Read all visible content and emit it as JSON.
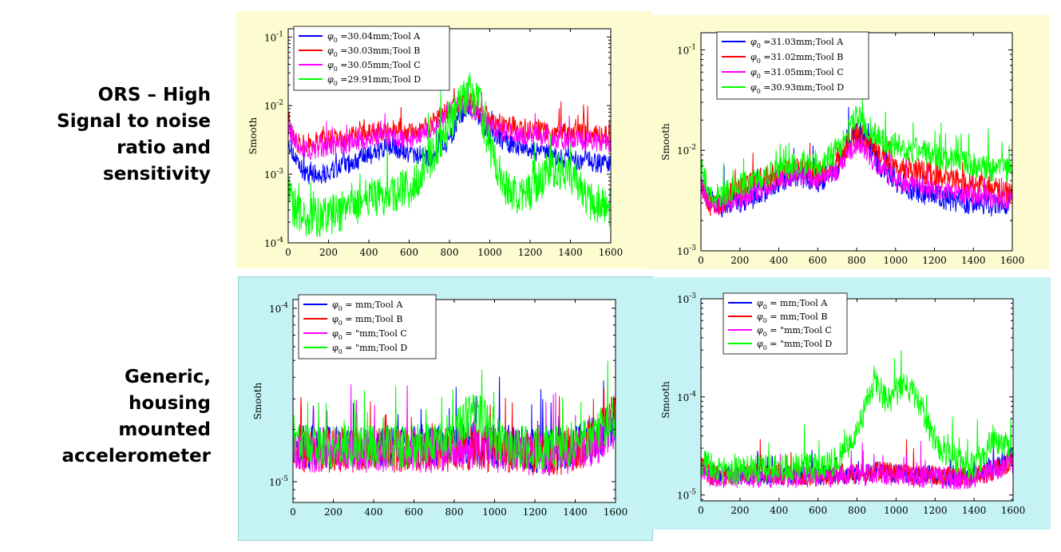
{
  "row_labels": [
    {
      "lines": [
        "ORS – High",
        "Signal to noise",
        "ratio and",
        "sensitivity"
      ]
    },
    {
      "lines": [
        "Generic,",
        "housing",
        "mounted",
        "accelerometer"
      ]
    }
  ],
  "colors": {
    "tool_a": "#0000ff",
    "tool_b": "#ff0000",
    "tool_c": "#ff00ff",
    "tool_d": "#00ff00",
    "ors_bg": "#fdfbd0",
    "accel_bg": "#c5f3f5"
  },
  "chart_data": [
    {
      "type": "line",
      "ylabel": "Smooth",
      "yscale": "log",
      "xlim": [
        0,
        1600
      ],
      "ylim_exp": [
        -4,
        -0.88
      ],
      "x_ticks": [
        "0",
        "200",
        "400",
        "600",
        "800",
        "1000",
        "1200",
        "1400",
        "1600"
      ],
      "y_ticks": [
        {
          "exp": -4,
          "label": "10",
          "sup": "-4"
        },
        {
          "exp": -3,
          "label": "10",
          "sup": "-3"
        },
        {
          "exp": -2,
          "label": "10",
          "sup": "-2"
        },
        {
          "exp": -1,
          "label": "10",
          "sup": "-1"
        }
      ],
      "legend_position": "top-left",
      "series": [
        {
          "name": "φ0 =30.04mm;Tool A",
          "sub_pre": "=30.04mm;Tool A",
          "x": [
            0,
            50,
            100,
            200,
            300,
            400,
            500,
            600,
            700,
            800,
            850,
            900,
            950,
            1000,
            1100,
            1200,
            1300,
            1400,
            1500,
            1600
          ],
          "log_values": [
            -2.5,
            -2.9,
            -3.0,
            -2.98,
            -2.85,
            -2.72,
            -2.6,
            -2.7,
            -2.75,
            -2.5,
            -2.2,
            -2.0,
            -2.2,
            -2.4,
            -2.55,
            -2.65,
            -2.72,
            -2.78,
            -2.82,
            -2.85
          ],
          "noise": 0.15
        },
        {
          "name": "φ0 =30.03mm;Tool B",
          "sub_pre": "=30.03mm;Tool B",
          "x": [
            0,
            50,
            100,
            200,
            300,
            400,
            500,
            600,
            700,
            800,
            850,
            900,
            950,
            1000,
            1100,
            1200,
            1300,
            1400,
            1500,
            1600
          ],
          "log_values": [
            -2.2,
            -2.55,
            -2.55,
            -2.5,
            -2.45,
            -2.4,
            -2.35,
            -2.4,
            -2.3,
            -2.05,
            -1.95,
            -1.95,
            -2.05,
            -2.2,
            -2.3,
            -2.35,
            -2.38,
            -2.4,
            -2.42,
            -2.45
          ],
          "noise": 0.15
        },
        {
          "name": "φ0 =30.05mm;Tool C",
          "sub_pre": "=30.05mm;Tool C",
          "x": [
            0,
            50,
            100,
            200,
            300,
            400,
            500,
            600,
            700,
            800,
            850,
            900,
            950,
            1000,
            1100,
            1200,
            1300,
            1400,
            1500,
            1600
          ],
          "log_values": [
            -2.3,
            -2.6,
            -2.65,
            -2.6,
            -2.55,
            -2.5,
            -2.45,
            -2.5,
            -2.35,
            -2.1,
            -2.0,
            -2.05,
            -2.15,
            -2.3,
            -2.4,
            -2.45,
            -2.5,
            -2.5,
            -2.52,
            -2.55
          ],
          "noise": 0.15
        },
        {
          "name": "φ0 =29.91mm;Tool D",
          "sub_pre": "=29.91mm;Tool D",
          "x": [
            0,
            50,
            100,
            200,
            300,
            400,
            500,
            600,
            700,
            800,
            850,
            900,
            950,
            1000,
            1100,
            1200,
            1300,
            1400,
            1500,
            1600
          ],
          "log_values": [
            -3.3,
            -3.6,
            -3.65,
            -3.6,
            -3.5,
            -3.35,
            -3.3,
            -3.2,
            -2.8,
            -2.3,
            -2.0,
            -1.8,
            -2.0,
            -2.6,
            -3.3,
            -3.3,
            -2.9,
            -3.0,
            -3.4,
            -3.5
          ],
          "noise": 0.3
        }
      ]
    },
    {
      "type": "line",
      "ylabel": "Smooth",
      "yscale": "log",
      "xlim": [
        0,
        1600
      ],
      "ylim_exp": [
        -3,
        -0.83
      ],
      "x_ticks": [
        "0",
        "200",
        "400",
        "600",
        "800",
        "1000",
        "1200",
        "1400",
        "1600"
      ],
      "y_ticks": [
        {
          "exp": -3,
          "label": "10",
          "sup": "-3"
        },
        {
          "exp": -2,
          "label": "10",
          "sup": "-2"
        },
        {
          "exp": -1,
          "label": "10",
          "sup": "-1"
        }
      ],
      "legend_position": "top-left",
      "series": [
        {
          "name": "φ0 =31.03mm;Tool A",
          "sub_pre": "=31.03mm;Tool A",
          "x": [
            0,
            50,
            100,
            200,
            300,
            400,
            500,
            600,
            700,
            750,
            800,
            850,
            900,
            1000,
            1100,
            1200,
            1300,
            1400,
            1500,
            1600
          ],
          "log_values": [
            -2.3,
            -2.5,
            -2.55,
            -2.5,
            -2.45,
            -2.3,
            -2.25,
            -2.3,
            -2.2,
            -1.95,
            -1.8,
            -1.9,
            -2.1,
            -2.3,
            -2.4,
            -2.45,
            -2.5,
            -2.52,
            -2.55,
            -2.5
          ],
          "noise": 0.12
        },
        {
          "name": "φ0 =31.02mm;Tool B",
          "sub_pre": "=31.02mm;Tool B",
          "x": [
            0,
            50,
            100,
            200,
            300,
            400,
            500,
            600,
            700,
            750,
            800,
            850,
            900,
            1000,
            1100,
            1200,
            1300,
            1400,
            1500,
            1600
          ],
          "log_values": [
            -2.3,
            -2.55,
            -2.5,
            -2.4,
            -2.3,
            -2.25,
            -2.2,
            -2.25,
            -2.1,
            -1.95,
            -1.85,
            -1.9,
            -2.0,
            -2.15,
            -2.2,
            -2.25,
            -2.3,
            -2.35,
            -2.4,
            -2.4
          ],
          "noise": 0.13
        },
        {
          "name": "φ0 =31.05mm;Tool C",
          "sub_pre": "=31.05mm;Tool C",
          "x": [
            0,
            50,
            100,
            200,
            300,
            400,
            500,
            600,
            700,
            750,
            800,
            850,
            900,
            1000,
            1100,
            1200,
            1300,
            1400,
            1500,
            1600
          ],
          "log_values": [
            -2.35,
            -2.55,
            -2.55,
            -2.5,
            -2.4,
            -2.3,
            -2.25,
            -2.3,
            -2.2,
            -2.05,
            -1.95,
            -2.0,
            -2.15,
            -2.3,
            -2.35,
            -2.4,
            -2.42,
            -2.45,
            -2.48,
            -2.5
          ],
          "noise": 0.1
        },
        {
          "name": "φ0 =30.93mm;Tool D",
          "sub_pre": "=30.93mm;Tool D",
          "x": [
            0,
            50,
            100,
            200,
            300,
            400,
            500,
            600,
            700,
            750,
            800,
            850,
            900,
            1000,
            1100,
            1200,
            1300,
            1400,
            1500,
            1600
          ],
          "log_values": [
            -2.2,
            -2.45,
            -2.45,
            -2.35,
            -2.3,
            -2.2,
            -2.15,
            -2.15,
            -2.0,
            -1.85,
            -1.65,
            -1.75,
            -1.85,
            -1.95,
            -2.0,
            -2.05,
            -2.1,
            -2.15,
            -2.2,
            -2.2
          ],
          "noise": 0.13
        }
      ]
    },
    {
      "type": "line",
      "ylabel": "Smooth",
      "yscale": "log",
      "xlim": [
        0,
        1600
      ],
      "ylim_exp": [
        -5.12,
        -3.95
      ],
      "x_ticks": [
        "0",
        "200",
        "400",
        "600",
        "800",
        "1000",
        "1200",
        "1400",
        "1600"
      ],
      "y_ticks": [
        {
          "exp": -5,
          "label": "10",
          "sup": "-5"
        },
        {
          "exp": -4,
          "label": "10",
          "sup": "-4"
        }
      ],
      "legend_position": "top-left",
      "series": [
        {
          "name": "φ0 = mm;Tool A",
          "sub_pre": "= mm;Tool A",
          "x": [
            0,
            50,
            100,
            200,
            400,
            600,
            800,
            900,
            1000,
            1100,
            1200,
            1300,
            1400,
            1500,
            1600
          ],
          "log_values": [
            -4.75,
            -4.8,
            -4.8,
            -4.8,
            -4.8,
            -4.8,
            -4.8,
            -4.78,
            -4.8,
            -4.8,
            -4.82,
            -4.82,
            -4.8,
            -4.75,
            -4.65
          ],
          "noise": 0.13
        },
        {
          "name": "φ0 = mm;Tool B",
          "sub_pre": "= mm;Tool B",
          "x": [
            0,
            50,
            100,
            200,
            400,
            600,
            800,
            900,
            1000,
            1100,
            1200,
            1300,
            1400,
            1500,
            1600
          ],
          "log_values": [
            -4.78,
            -4.82,
            -4.82,
            -4.82,
            -4.82,
            -4.82,
            -4.82,
            -4.8,
            -4.82,
            -4.82,
            -4.84,
            -4.84,
            -4.82,
            -4.75,
            -4.6
          ],
          "noise": 0.13
        },
        {
          "name": "φ0 = \"mm;Tool C",
          "sub_pre": "= \"mm;Tool C",
          "x": [
            0,
            50,
            100,
            200,
            400,
            600,
            800,
            900,
            1000,
            1100,
            1200,
            1300,
            1400,
            1500,
            1600
          ],
          "log_values": [
            -4.78,
            -4.82,
            -4.82,
            -4.82,
            -4.82,
            -4.82,
            -4.82,
            -4.8,
            -4.82,
            -4.82,
            -4.84,
            -4.84,
            -4.82,
            -4.78,
            -4.68
          ],
          "noise": 0.13
        },
        {
          "name": "φ0 = \"mm;Tool D",
          "sub_pre": "= \"mm;Tool D",
          "x": [
            0,
            50,
            100,
            200,
            400,
            600,
            800,
            850,
            900,
            950,
            1000,
            1100,
            1200,
            1300,
            1400,
            1500,
            1600
          ],
          "log_values": [
            -4.75,
            -4.8,
            -4.8,
            -4.8,
            -4.8,
            -4.8,
            -4.72,
            -4.65,
            -4.6,
            -4.65,
            -4.75,
            -4.8,
            -4.8,
            -4.8,
            -4.78,
            -4.72,
            -4.62
          ],
          "noise": 0.13
        }
      ]
    },
    {
      "type": "line",
      "ylabel": "Smooth",
      "yscale": "log",
      "xlim": [
        0,
        1600
      ],
      "ylim_exp": [
        -5.06,
        -3.0
      ],
      "x_ticks": [
        "0",
        "200",
        "400",
        "600",
        "800",
        "1000",
        "1200",
        "1400",
        "1600"
      ],
      "y_ticks": [
        {
          "exp": -5,
          "label": "10",
          "sup": "-5"
        },
        {
          "exp": -4,
          "label": "10",
          "sup": "-4"
        },
        {
          "exp": -3,
          "label": "10",
          "sup": "-3"
        }
      ],
      "legend_position": "top-left",
      "series": [
        {
          "name": "φ0 = mm;Tool A",
          "sub_pre": "= mm;Tool A",
          "x": [
            0,
            50,
            100,
            200,
            400,
            600,
            800,
            900,
            1000,
            1100,
            1200,
            1300,
            1400,
            1500,
            1600
          ],
          "log_values": [
            -4.7,
            -4.78,
            -4.8,
            -4.8,
            -4.8,
            -4.8,
            -4.78,
            -4.76,
            -4.78,
            -4.8,
            -4.8,
            -4.82,
            -4.8,
            -4.7,
            -4.6
          ],
          "noise": 0.1
        },
        {
          "name": "φ0 = mm;Tool B",
          "sub_pre": "= mm;Tool B",
          "x": [
            0,
            50,
            100,
            200,
            400,
            600,
            800,
            900,
            1000,
            1100,
            1200,
            1300,
            1400,
            1500,
            1600
          ],
          "log_values": [
            -4.72,
            -4.8,
            -4.8,
            -4.78,
            -4.78,
            -4.8,
            -4.78,
            -4.76,
            -4.78,
            -4.8,
            -4.8,
            -4.82,
            -4.82,
            -4.75,
            -4.65
          ],
          "noise": 0.11
        },
        {
          "name": "φ0 = \"mm;Tool C",
          "sub_pre": "= \"mm;Tool C",
          "x": [
            0,
            50,
            100,
            200,
            400,
            600,
            800,
            900,
            1000,
            1100,
            1200,
            1300,
            1400,
            1500,
            1600
          ],
          "log_values": [
            -4.72,
            -4.82,
            -4.82,
            -4.82,
            -4.82,
            -4.82,
            -4.8,
            -4.78,
            -4.8,
            -4.82,
            -4.82,
            -4.84,
            -4.82,
            -4.75,
            -4.68
          ],
          "noise": 0.11
        },
        {
          "name": "φ0 = \"mm;Tool D",
          "sub_pre": "= \"mm;Tool D",
          "x": [
            0,
            50,
            100,
            200,
            400,
            600,
            700,
            800,
            850,
            900,
            950,
            1000,
            1050,
            1100,
            1150,
            1200,
            1300,
            1400,
            1500,
            1600
          ],
          "log_values": [
            -4.65,
            -4.72,
            -4.75,
            -4.75,
            -4.72,
            -4.72,
            -4.65,
            -4.35,
            -4.05,
            -3.85,
            -4.05,
            -3.95,
            -3.9,
            -4.0,
            -4.2,
            -4.45,
            -4.65,
            -4.7,
            -4.45,
            -4.5
          ],
          "noise": 0.15
        }
      ]
    }
  ]
}
